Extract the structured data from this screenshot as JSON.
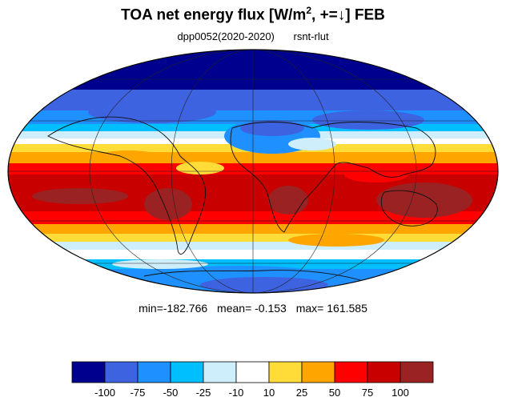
{
  "title": {
    "main": "TOA net energy flux  [W/m",
    "sup": "2",
    "tail": ", +=↓] FEB"
  },
  "subtitle": {
    "left": "dpp0052(2020-2020)",
    "right": "rsnt-rlut"
  },
  "stats": {
    "min": "min=-182.766",
    "mean": "mean=  -0.153",
    "max": "max= 161.585"
  },
  "colorbar": {
    "colors": [
      "#00008f",
      "#3e63e0",
      "#1e90ff",
      "#00bfff",
      "#cdeefa",
      "#ffffff",
      "#ffdc38",
      "#ffa500",
      "#ff0000",
      "#c80000",
      "#9b2222"
    ],
    "labels": [
      "-100",
      "-75",
      "-50",
      "-25",
      "-10",
      "10",
      "25",
      "50",
      "75",
      "100"
    ]
  }
}
